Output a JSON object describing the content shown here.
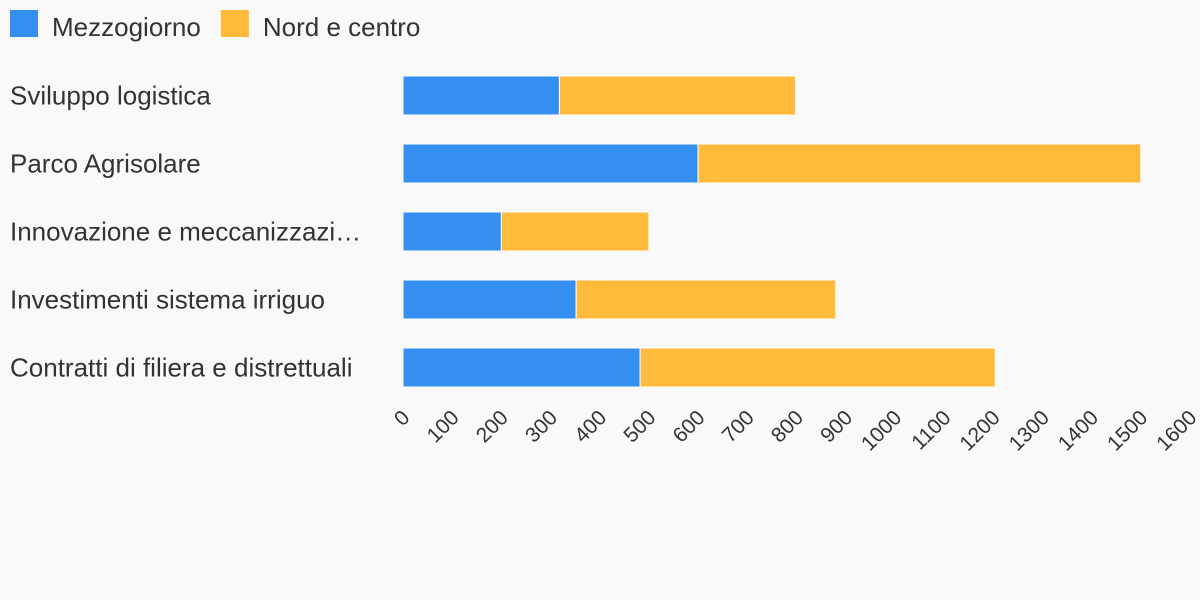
{
  "chart_data": {
    "type": "bar",
    "orientation": "horizontal",
    "stacked": true,
    "title": "",
    "xlabel": "",
    "ylabel": "",
    "categories": [
      "Sviluppo logistica",
      "Parco Agrisolare",
      "Innovazione e meccanizzazi…",
      "Investimenti sistema irriguo",
      "Contratti di filiera e distrettuali"
    ],
    "series": [
      {
        "name": "Mezzogiorno",
        "color": "#348ff0",
        "values": [
          318,
          600,
          200,
          352,
          482
        ]
      },
      {
        "name": "Nord e centro",
        "color": "#ffb93b",
        "values": [
          480,
          900,
          300,
          528,
          722
        ]
      }
    ],
    "xlim": [
      0,
      1600
    ],
    "xticks": [
      "0",
      "100",
      "200",
      "300",
      "400",
      "500",
      "600",
      "700",
      "800",
      "900",
      "1000",
      "1100",
      "1200",
      "1300",
      "1400",
      "1500",
      "1600"
    ],
    "grid": false,
    "legend_position": "top-left"
  }
}
